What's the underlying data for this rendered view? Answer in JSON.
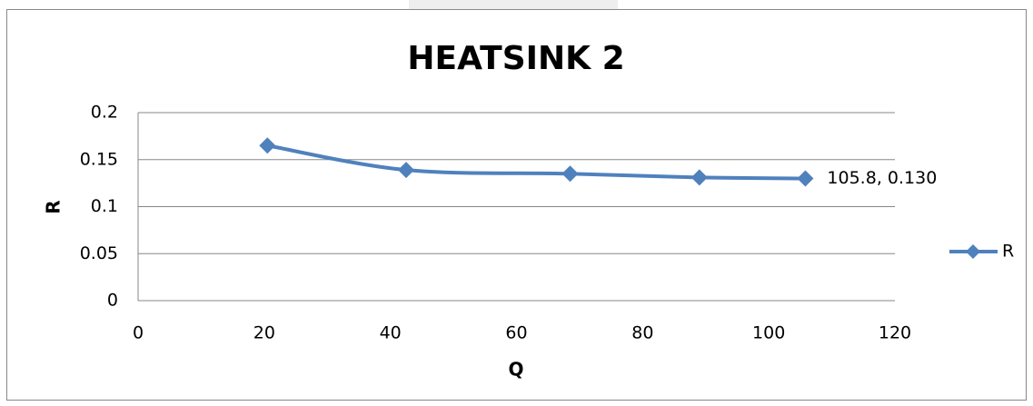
{
  "chart_data": {
    "type": "scatter",
    "title": "HEATSINK 2",
    "x_label": "Q",
    "y_label": "R",
    "x": [
      20.5,
      42.5,
      68.5,
      89,
      105.8
    ],
    "series": [
      {
        "name": "R",
        "color": "#4f81bd",
        "values": [
          0.165,
          0.139,
          0.135,
          0.131,
          0.13
        ]
      }
    ],
    "annotation": {
      "text": "105.8, 0.130",
      "x": 105.8,
      "y": 0.13
    },
    "xlim": [
      0,
      120
    ],
    "xticks": [
      0,
      20,
      40,
      60,
      80,
      100,
      120
    ],
    "ylim": [
      0,
      0.2
    ],
    "yticks": [
      0,
      0.05,
      0.1,
      0.15,
      0.2
    ],
    "grid": true,
    "legend": "right",
    "smooth": true
  }
}
